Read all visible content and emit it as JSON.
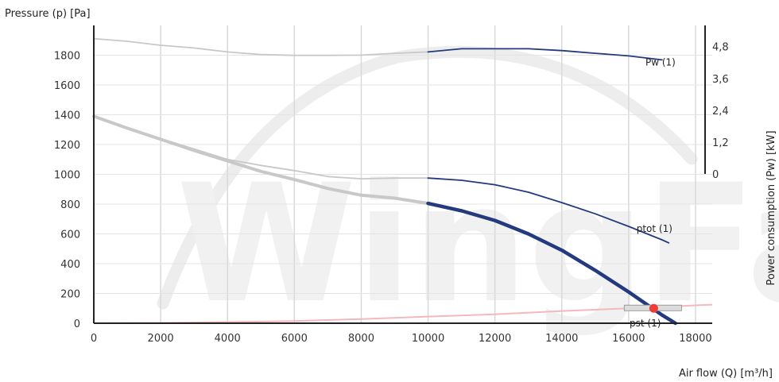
{
  "chart_data": {
    "type": "line",
    "xlabel": "Air flow (Q) [m³/h]",
    "ylabel": "Pressure (p) [Pa]",
    "y2label": "Power consumption (Pw) [kW]",
    "xlim": [
      0,
      18500
    ],
    "ylim": [
      0,
      2000
    ],
    "y2lim": [
      0,
      5.6
    ],
    "x_ticks": [
      0,
      2000,
      4000,
      6000,
      8000,
      10000,
      12000,
      14000,
      16000,
      18000
    ],
    "y_ticks": [
      0,
      200,
      400,
      600,
      800,
      1000,
      1200,
      1400,
      1600,
      1800
    ],
    "y2_ticks": [
      "0",
      "1,2",
      "2,4",
      "3,6",
      "4,8"
    ],
    "y2_tick_values": [
      0,
      1.2,
      2.4,
      3.6,
      4.8
    ],
    "grid": true,
    "watermark": "WingFan",
    "colors": {
      "operating": "#233a7e",
      "extended": "#c8c8c8",
      "load_line": "#f4b8bd",
      "operating_point": "#ef3c38",
      "grid": "#d9d9d9"
    },
    "series": [
      {
        "name": "Pw (1)",
        "axis": "y2",
        "style": "thin",
        "x": [
          0,
          1000,
          2000,
          3000,
          4000,
          5000,
          6000,
          7000,
          8000,
          9000,
          10000,
          11000,
          12000,
          13000,
          14000,
          15000,
          16000,
          17000
        ],
        "y": [
          5.1,
          5.0,
          4.85,
          4.75,
          4.6,
          4.5,
          4.47,
          4.47,
          4.48,
          4.55,
          4.6,
          4.72,
          4.72,
          4.72,
          4.65,
          4.55,
          4.45,
          4.3
        ],
        "operating_from": 10000
      },
      {
        "name": "ptot (1)",
        "axis": "y",
        "style": "thin",
        "x": [
          0,
          1000,
          2000,
          3000,
          4000,
          5000,
          6000,
          7000,
          8000,
          9000,
          10000,
          11000,
          12000,
          13000,
          14000,
          15000,
          16000,
          17000,
          17200
        ],
        "y": [
          1395,
          1310,
          1240,
          1170,
          1100,
          1060,
          1025,
          985,
          970,
          975,
          975,
          960,
          930,
          880,
          810,
          735,
          650,
          560,
          540
        ],
        "operating_from": 10000
      },
      {
        "name": "pst (1)",
        "axis": "y",
        "style": "thick",
        "x": [
          0,
          1000,
          2000,
          3000,
          4000,
          5000,
          6000,
          7000,
          8000,
          9000,
          10000,
          11000,
          12000,
          13000,
          14000,
          15000,
          16000,
          17000,
          17400
        ],
        "y": [
          1390,
          1310,
          1235,
          1160,
          1090,
          1020,
          965,
          905,
          860,
          840,
          805,
          755,
          690,
          600,
          490,
          355,
          210,
          55,
          0
        ],
        "operating_from": 10000
      },
      {
        "name": "",
        "axis": "y",
        "style": "load",
        "x": [
          0,
          2000,
          4000,
          6000,
          8000,
          10000,
          12000,
          14000,
          16000,
          18000,
          18500
        ],
        "y": [
          0,
          2,
          8,
          15,
          28,
          45,
          60,
          82,
          100,
          120,
          125
        ]
      }
    ],
    "operating_point": {
      "x": 16750,
      "y": 100
    },
    "labels": [
      {
        "text": "Pw (1)",
        "series": 0
      },
      {
        "text": "ptot (1)",
        "series": 1
      },
      {
        "text": "pst (1)",
        "series": 2
      }
    ]
  }
}
